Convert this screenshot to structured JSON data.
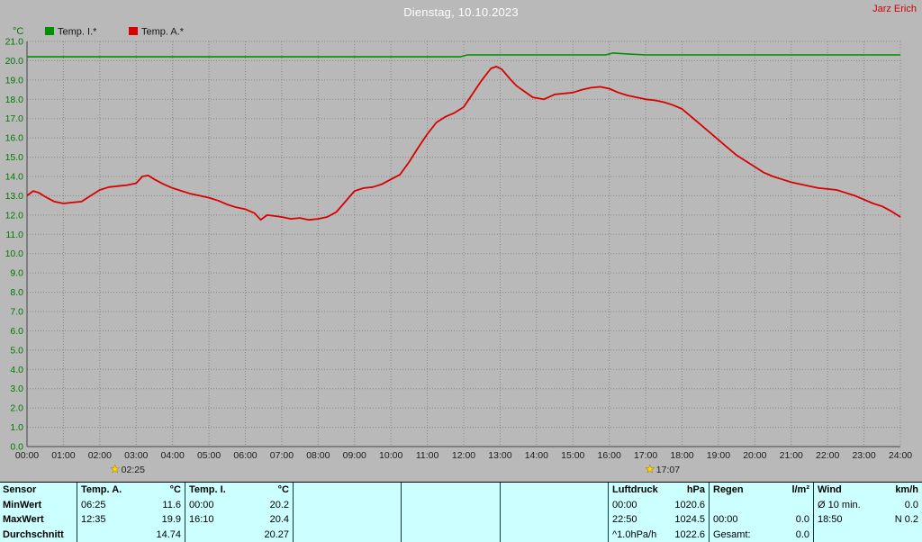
{
  "header": {
    "title": "Dienstag, 10.10.2023",
    "user": "Jarz Erich"
  },
  "chart_data": {
    "type": "line",
    "title": "Dienstag, 10.10.2023",
    "xlabel": "",
    "ylabel": "°C",
    "ylim": [
      0.0,
      21.0
    ],
    "ytick_step": 1.0,
    "xlim_hours": [
      0,
      24
    ],
    "xtick_labels": [
      "00:00",
      "01:00",
      "02:00",
      "03:00",
      "04:00",
      "05:00",
      "06:00",
      "07:00",
      "08:00",
      "09:00",
      "10:00",
      "11:00",
      "12:00",
      "13:00",
      "14:00",
      "15:00",
      "16:00",
      "17:00",
      "18:00",
      "19:00",
      "20:00",
      "21:00",
      "22:00",
      "23:00",
      "24:00"
    ],
    "grid": true,
    "legend_position": "top-left",
    "colors": {
      "background": "#b9b9b9",
      "grid": "#868686",
      "y_axis_labels": "#007800",
      "x_axis_labels": "#1c1c1c",
      "marker": "#ffd400"
    },
    "series": [
      {
        "name": "Temp. I.*",
        "color": "#009000",
        "points": [
          [
            0,
            20.2
          ],
          [
            1,
            20.2
          ],
          [
            2,
            20.2
          ],
          [
            3,
            20.2
          ],
          [
            4,
            20.2
          ],
          [
            5,
            20.2
          ],
          [
            6,
            20.2
          ],
          [
            7,
            20.2
          ],
          [
            8,
            20.2
          ],
          [
            9,
            20.2
          ],
          [
            10,
            20.2
          ],
          [
            11,
            20.2
          ],
          [
            11.9,
            20.2
          ],
          [
            12.1,
            20.3
          ],
          [
            13,
            20.3
          ],
          [
            14,
            20.3
          ],
          [
            15,
            20.3
          ],
          [
            15.9,
            20.3
          ],
          [
            16.1,
            20.4
          ],
          [
            16.5,
            20.35
          ],
          [
            17,
            20.3
          ],
          [
            18,
            20.3
          ],
          [
            19,
            20.3
          ],
          [
            20,
            20.3
          ],
          [
            21,
            20.3
          ],
          [
            22,
            20.3
          ],
          [
            23,
            20.3
          ],
          [
            24,
            20.3
          ]
        ]
      },
      {
        "name": "Temp. A.*",
        "color": "#d80000",
        "points": [
          [
            0,
            13.0
          ],
          [
            0.17,
            13.25
          ],
          [
            0.33,
            13.15
          ],
          [
            0.5,
            12.95
          ],
          [
            0.75,
            12.7
          ],
          [
            1,
            12.6
          ],
          [
            1.25,
            12.65
          ],
          [
            1.5,
            12.7
          ],
          [
            1.75,
            13.0
          ],
          [
            2,
            13.3
          ],
          [
            2.25,
            13.45
          ],
          [
            2.5,
            13.5
          ],
          [
            2.75,
            13.55
          ],
          [
            3,
            13.65
          ],
          [
            3.17,
            14.0
          ],
          [
            3.33,
            14.05
          ],
          [
            3.5,
            13.85
          ],
          [
            3.75,
            13.6
          ],
          [
            4,
            13.4
          ],
          [
            4.25,
            13.25
          ],
          [
            4.5,
            13.1
          ],
          [
            4.75,
            13.0
          ],
          [
            5,
            12.9
          ],
          [
            5.25,
            12.75
          ],
          [
            5.5,
            12.55
          ],
          [
            5.75,
            12.4
          ],
          [
            6,
            12.3
          ],
          [
            6.25,
            12.1
          ],
          [
            6.42,
            11.75
          ],
          [
            6.6,
            12.0
          ],
          [
            6.8,
            11.95
          ],
          [
            7,
            11.9
          ],
          [
            7.25,
            11.8
          ],
          [
            7.5,
            11.85
          ],
          [
            7.75,
            11.75
          ],
          [
            8,
            11.8
          ],
          [
            8.25,
            11.9
          ],
          [
            8.5,
            12.15
          ],
          [
            8.75,
            12.7
          ],
          [
            9,
            13.25
          ],
          [
            9.25,
            13.4
          ],
          [
            9.5,
            13.45
          ],
          [
            9.75,
            13.6
          ],
          [
            10,
            13.85
          ],
          [
            10.25,
            14.1
          ],
          [
            10.5,
            14.75
          ],
          [
            10.75,
            15.5
          ],
          [
            11,
            16.2
          ],
          [
            11.25,
            16.8
          ],
          [
            11.5,
            17.1
          ],
          [
            11.75,
            17.3
          ],
          [
            12,
            17.6
          ],
          [
            12.25,
            18.3
          ],
          [
            12.5,
            19.0
          ],
          [
            12.75,
            19.6
          ],
          [
            12.9,
            19.7
          ],
          [
            13.05,
            19.55
          ],
          [
            13.3,
            19.0
          ],
          [
            13.45,
            18.7
          ],
          [
            13.6,
            18.5
          ],
          [
            13.9,
            18.1
          ],
          [
            14.2,
            18.0
          ],
          [
            14.5,
            18.25
          ],
          [
            14.75,
            18.3
          ],
          [
            15,
            18.35
          ],
          [
            15.25,
            18.5
          ],
          [
            15.5,
            18.6
          ],
          [
            15.75,
            18.65
          ],
          [
            16,
            18.55
          ],
          [
            16.25,
            18.35
          ],
          [
            16.5,
            18.2
          ],
          [
            16.75,
            18.1
          ],
          [
            17,
            18.0
          ],
          [
            17.25,
            17.95
          ],
          [
            17.5,
            17.85
          ],
          [
            17.75,
            17.7
          ],
          [
            18,
            17.5
          ],
          [
            18.25,
            17.1
          ],
          [
            18.5,
            16.7
          ],
          [
            18.75,
            16.3
          ],
          [
            19,
            15.9
          ],
          [
            19.25,
            15.5
          ],
          [
            19.5,
            15.1
          ],
          [
            19.75,
            14.8
          ],
          [
            20,
            14.5
          ],
          [
            20.25,
            14.2
          ],
          [
            20.5,
            14.0
          ],
          [
            20.75,
            13.85
          ],
          [
            21,
            13.7
          ],
          [
            21.25,
            13.6
          ],
          [
            21.5,
            13.5
          ],
          [
            21.75,
            13.4
          ],
          [
            22,
            13.35
          ],
          [
            22.25,
            13.3
          ],
          [
            22.5,
            13.15
          ],
          [
            22.75,
            13.0
          ],
          [
            23,
            12.8
          ],
          [
            23.25,
            12.6
          ],
          [
            23.5,
            12.45
          ],
          [
            23.75,
            12.2
          ],
          [
            24,
            11.9
          ]
        ]
      }
    ],
    "axis_markers": [
      {
        "label": "02:25",
        "hour": 2.4167
      },
      {
        "label": "17:07",
        "hour": 17.1167
      }
    ]
  },
  "stats_table": {
    "background": "#ccffff",
    "rows": [
      {
        "label": "Sensor",
        "cols": [
          [
            "Temp. A.",
            "°C"
          ],
          [
            "Temp. I.",
            "°C"
          ],
          [
            "",
            ""
          ],
          [
            "",
            ""
          ],
          [
            "",
            ""
          ],
          [
            "Luftdruck",
            "hPa"
          ],
          [
            "Regen",
            "l/m²"
          ],
          [
            "Wind",
            "km/h"
          ]
        ]
      },
      {
        "label": "MinWert",
        "cols": [
          [
            "06:25",
            "11.6"
          ],
          [
            "00:00",
            "20.2"
          ],
          [
            "",
            ""
          ],
          [
            "",
            ""
          ],
          [
            "",
            ""
          ],
          [
            "00:00",
            "1020.6"
          ],
          [
            "",
            ""
          ],
          [
            "Ø 10 min.",
            "0.0"
          ]
        ]
      },
      {
        "label": "MaxWert",
        "cols": [
          [
            "12:35",
            "19.9"
          ],
          [
            "16:10",
            "20.4"
          ],
          [
            "",
            ""
          ],
          [
            "",
            ""
          ],
          [
            "",
            ""
          ],
          [
            "22:50",
            "1024.5"
          ],
          [
            "00:00",
            "0.0"
          ],
          [
            "18:50",
            "N 0.2"
          ]
        ]
      },
      {
        "label": "Durchschnitt",
        "cols": [
          [
            "",
            "14.74"
          ],
          [
            "",
            "20.27"
          ],
          [
            "",
            ""
          ],
          [
            "",
            ""
          ],
          [
            "",
            ""
          ],
          [
            "^1.0hPa/h",
            "1022.6"
          ],
          [
            "Gesamt:",
            "0.0"
          ],
          [
            "",
            ""
          ]
        ]
      }
    ]
  }
}
